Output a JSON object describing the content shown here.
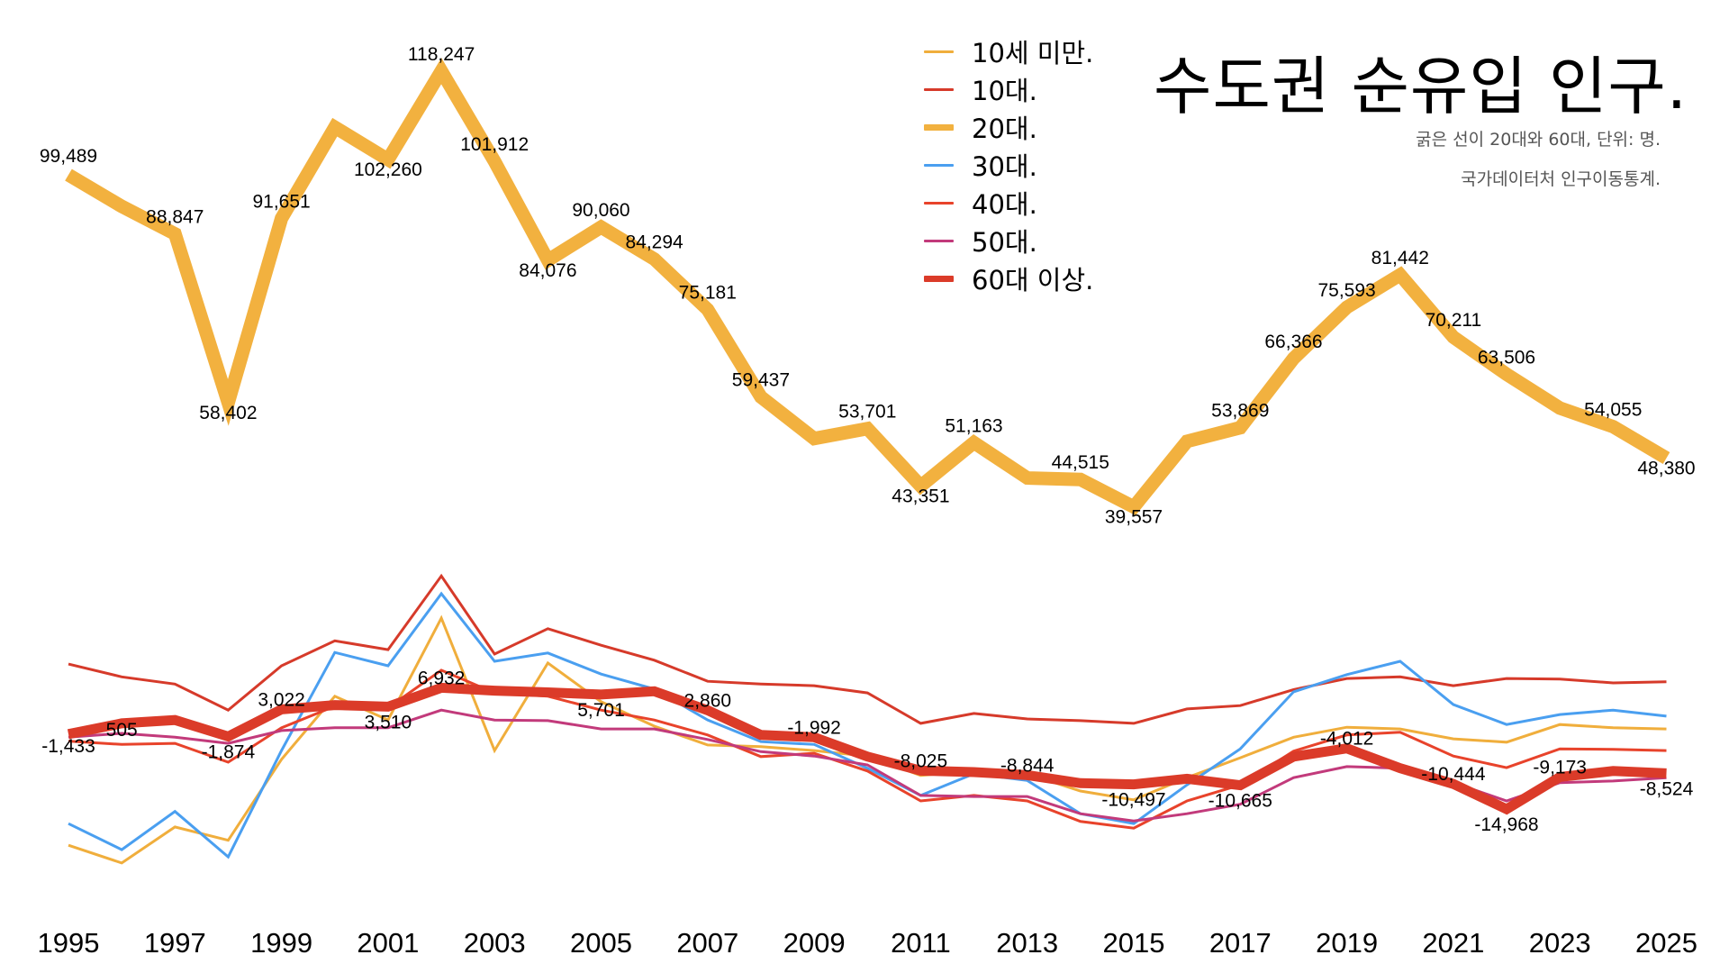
{
  "chart_data": {
    "type": "line",
    "title": "수도권 순유입 인구.",
    "subtitle": [
      "굵은 선이 20대와 60대, 단위: 명.",
      "국가데이터처 인구이동통계."
    ],
    "xlabel": "",
    "ylabel": "",
    "x": [
      1995,
      1996,
      1997,
      1998,
      1999,
      2000,
      2001,
      2002,
      2003,
      2004,
      2005,
      2006,
      2007,
      2008,
      2009,
      2010,
      2011,
      2012,
      2013,
      2014,
      2015,
      2016,
      2017,
      2018,
      2019,
      2020,
      2021,
      2022,
      2023,
      2024,
      2025
    ],
    "x_ticks": [
      "1995",
      "1997",
      "1999",
      "2001",
      "2003",
      "2005",
      "2007",
      "2009",
      "2011",
      "2013",
      "2015",
      "2017",
      "2019",
      "2021",
      "2023",
      "2025"
    ],
    "ylim": [
      -26000,
      122000
    ],
    "grid": false,
    "legend_position": "top-center",
    "series": [
      {
        "name": "10세 미만.",
        "color": "#F0AE3C",
        "weight": "thin",
        "values": [
          -21500,
          -24700,
          -18200,
          -20600,
          -6000,
          5400,
          1100,
          19500,
          -4400,
          11400,
          4400,
          0,
          -3400,
          -3700,
          -4400,
          -5400,
          -8900,
          -8100,
          -8600,
          -11700,
          -13300,
          -9300,
          -5700,
          -2000,
          -200,
          -500,
          -2300,
          -2900,
          300,
          -300,
          -500
        ],
        "labels": []
      },
      {
        "name": "10대.",
        "color": "#D63A2A",
        "weight": "thin",
        "values": [
          11200,
          8900,
          7600,
          2900,
          10900,
          15400,
          13800,
          27100,
          13000,
          17600,
          14600,
          11900,
          8100,
          7600,
          7300,
          6000,
          500,
          2300,
          1300,
          1000,
          500,
          3100,
          3700,
          6600,
          8600,
          8900,
          7300,
          8600,
          8500,
          7800,
          8000
        ],
        "labels": []
      },
      {
        "name": "20대.",
        "color": "#F2B13F",
        "weight": "thick",
        "values": [
          99489,
          93800,
          88847,
          58402,
          91651,
          108100,
          102260,
          118247,
          101912,
          84076,
          90060,
          84294,
          75181,
          59437,
          51900,
          53701,
          43351,
          51163,
          44800,
          44515,
          39557,
          51400,
          53869,
          66366,
          75593,
          81442,
          70211,
          63506,
          57400,
          54055,
          48380
        ],
        "labels": [
          {
            "year": 1995,
            "text": "99,489"
          },
          {
            "year": 1997,
            "text": "88,847"
          },
          {
            "year": 1998,
            "text": "58,402"
          },
          {
            "year": 1999,
            "text": "91,651"
          },
          {
            "year": 2001,
            "text": "102,260"
          },
          {
            "year": 2002,
            "text": "118,247"
          },
          {
            "year": 2003,
            "text": "101,912"
          },
          {
            "year": 2004,
            "text": "84,076"
          },
          {
            "year": 2005,
            "text": "90,060"
          },
          {
            "year": 2006,
            "text": "84,294"
          },
          {
            "year": 2007,
            "text": "75,181"
          },
          {
            "year": 2008,
            "text": "59,437"
          },
          {
            "year": 2010,
            "text": "53,701"
          },
          {
            "year": 2011,
            "text": "43,351"
          },
          {
            "year": 2012,
            "text": "51,163"
          },
          {
            "year": 2014,
            "text": "44,515"
          },
          {
            "year": 2015,
            "text": "39,557"
          },
          {
            "year": 2017,
            "text": "53,869"
          },
          {
            "year": 2018,
            "text": "66,366"
          },
          {
            "year": 2019,
            "text": "75,593"
          },
          {
            "year": 2020,
            "text": "81,442"
          },
          {
            "year": 2021,
            "text": "70,211"
          },
          {
            "year": 2022,
            "text": "63,506"
          },
          {
            "year": 2024,
            "text": "54,055"
          },
          {
            "year": 2025,
            "text": "48,380"
          }
        ]
      },
      {
        "name": "30대.",
        "color": "#4A9FF0",
        "weight": "thin",
        "values": [
          -17600,
          -22300,
          -15400,
          -23600,
          -4400,
          13300,
          10900,
          23900,
          11700,
          13200,
          9400,
          6700,
          1100,
          -2800,
          -3300,
          -7600,
          -12500,
          -8600,
          -9800,
          -15800,
          -17600,
          -10600,
          -4100,
          6200,
          9300,
          11700,
          3900,
          300,
          2100,
          2900,
          1800
        ],
        "labels": []
      },
      {
        "name": "40대.",
        "color": "#E8432B",
        "weight": "thin",
        "values": [
          -2700,
          -3300,
          -3100,
          -6500,
          -300,
          3600,
          3300,
          10100,
          6000,
          5400,
          2900,
          1100,
          -1600,
          -5500,
          -4900,
          -8100,
          -13500,
          -12500,
          -13500,
          -17200,
          -18400,
          -13500,
          -10600,
          -4500,
          -1600,
          -1100,
          -5400,
          -7500,
          -4100,
          -4200,
          -4400
        ],
        "labels": []
      },
      {
        "name": "50대.",
        "color": "#C23A7B",
        "weight": "thin",
        "values": [
          -2000,
          -1300,
          -2000,
          -3100,
          -800,
          -300,
          -300,
          2900,
          1100,
          1000,
          -500,
          -500,
          -2400,
          -4600,
          -5400,
          -7000,
          -12500,
          -12700,
          -12700,
          -15800,
          -17100,
          -15800,
          -14100,
          -9300,
          -7300,
          -7600,
          -10200,
          -13500,
          -10200,
          -9900,
          -9300
        ],
        "labels": []
      },
      {
        "name": "60대 이상.",
        "color": "#DB3B29",
        "weight": "thick",
        "values": [
          -1433,
          505,
          1100,
          -1874,
          3022,
          3800,
          3510,
          6932,
          6400,
          6100,
          5701,
          6300,
          2860,
          -1600,
          -1992,
          -5500,
          -8025,
          -8300,
          -8844,
          -10300,
          -10497,
          -9500,
          -10665,
          -5500,
          -4012,
          -7600,
          -10444,
          -14968,
          -9173,
          -8100,
          -8524
        ],
        "labels": [
          {
            "year": 1995,
            "text": "-1,433"
          },
          {
            "year": 1996,
            "text": "505"
          },
          {
            "year": 1998,
            "text": "-1,874"
          },
          {
            "year": 1999,
            "text": "3,022"
          },
          {
            "year": 2001,
            "text": "3,510"
          },
          {
            "year": 2002,
            "text": "6,932"
          },
          {
            "year": 2005,
            "text": "5,701"
          },
          {
            "year": 2007,
            "text": "2,860"
          },
          {
            "year": 2009,
            "text": "-1,992"
          },
          {
            "year": 2011,
            "text": "-8,025"
          },
          {
            "year": 2013,
            "text": "-8,844"
          },
          {
            "year": 2015,
            "text": "-10,497"
          },
          {
            "year": 2017,
            "text": "-10,665"
          },
          {
            "year": 2019,
            "text": "-4,012"
          },
          {
            "year": 2021,
            "text": "-10,444"
          },
          {
            "year": 2022,
            "text": "-14,968"
          },
          {
            "year": 2023,
            "text": "-9,173"
          },
          {
            "year": 2025,
            "text": "-8,524"
          }
        ]
      }
    ]
  }
}
